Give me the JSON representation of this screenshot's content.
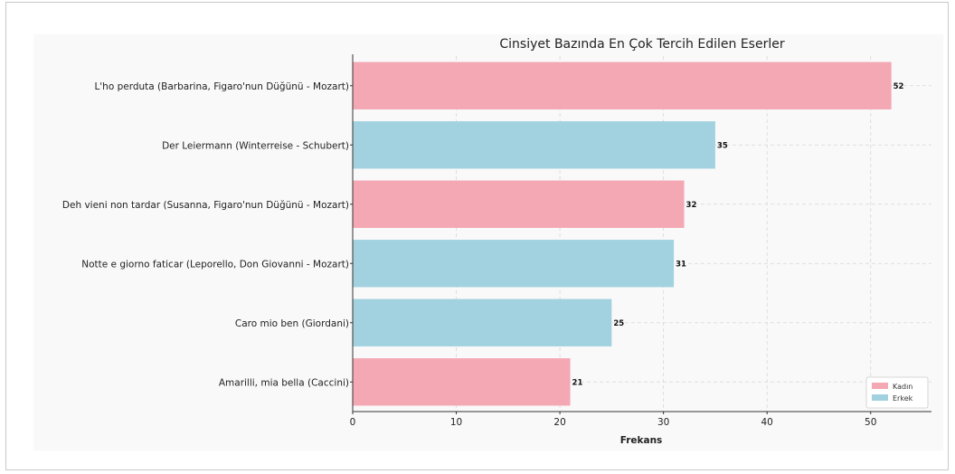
{
  "chart_data": {
    "type": "bar",
    "orientation": "horizontal",
    "title": "Cinsiyet Bazında En Çok Tercih Edilen Eserler",
    "xlabel": "Frekans",
    "ylabel": "",
    "xlim": [
      0,
      55
    ],
    "xticks": [
      0,
      10,
      20,
      30,
      40,
      50
    ],
    "grid": "x-dashed",
    "legend_position": "bottom-right",
    "series": [
      {
        "name": "Kadın",
        "color": "#f4a8b4"
      },
      {
        "name": "Erkek",
        "color": "#a2d2e0"
      }
    ],
    "bars": [
      {
        "label": "L'ho perduta (Barbarina, Figaro'nun Düğünü - Mozart)",
        "value": 52,
        "series": "Kadın"
      },
      {
        "label": "Der Leiermann (Winterreise - Schubert)",
        "value": 35,
        "series": "Erkek"
      },
      {
        "label": "Deh vieni non tardar (Susanna, Figaro'nun Düğünü - Mozart)",
        "value": 32,
        "series": "Kadın"
      },
      {
        "label": "Notte e giorno faticar (Leporello, Don Giovanni - Mozart)",
        "value": 31,
        "series": "Erkek"
      },
      {
        "label": "Caro mio ben (Giordani)",
        "value": 25,
        "series": "Erkek"
      },
      {
        "label": "Amarilli, mia bella (Caccini)",
        "value": 21,
        "series": "Kadın"
      }
    ]
  }
}
